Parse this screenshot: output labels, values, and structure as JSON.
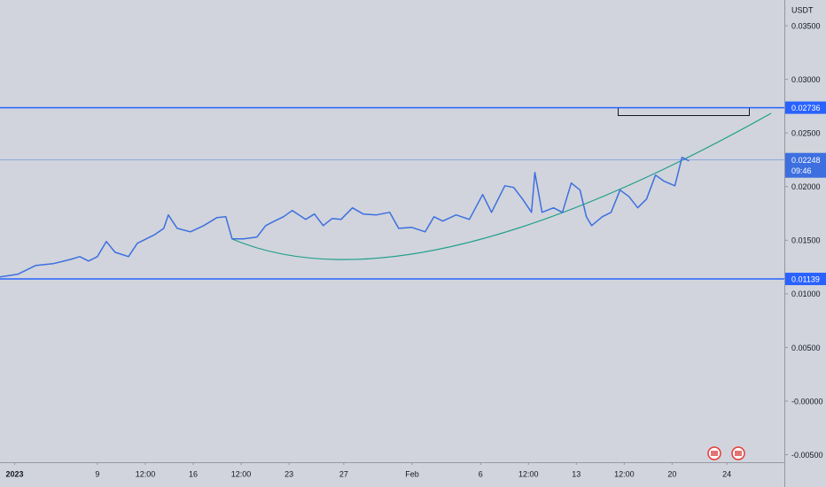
{
  "chart_data": {
    "type": "line",
    "currency": "USDT",
    "x": [
      1.88,
      3.17,
      4.47,
      5.76,
      7.06,
      7.71,
      8.35,
      9.0,
      9.65,
      10.29,
      11.27,
      11.91,
      12.56,
      13.21,
      13.85,
      14.18,
      14.83,
      15.8,
      16.77,
      17.74,
      18.38,
      18.84,
      19.68,
      20.65,
      21.3,
      21.94,
      22.59,
      23.24,
      24.21,
      24.86,
      25.5,
      26.15,
      26.8,
      27.64,
      28.42,
      29.39,
      30.36,
      31.01,
      31.98,
      32.95,
      33.6,
      34.24,
      35.21,
      36.18,
      37.15,
      37.8,
      38.77,
      39.42,
      40.07,
      40.72,
      40.97,
      41.49,
      42.33,
      42.98,
      43.63,
      44.27,
      44.73,
      45.12,
      45.89,
      46.54,
      47.19,
      47.83,
      48.48,
      49.13,
      49.78,
      50.42,
      51.2,
      51.72,
      52.24
    ],
    "values": [
      0.01157,
      0.01182,
      0.01264,
      0.01281,
      0.01322,
      0.01347,
      0.01306,
      0.01347,
      0.01488,
      0.01388,
      0.01347,
      0.01471,
      0.01512,
      0.01554,
      0.01611,
      0.01736,
      0.01611,
      0.01578,
      0.01636,
      0.01711,
      0.01719,
      0.01512,
      0.01512,
      0.01529,
      0.01636,
      0.01678,
      0.01719,
      0.01777,
      0.01694,
      0.01744,
      0.01636,
      0.01702,
      0.01694,
      0.01802,
      0.01744,
      0.01736,
      0.0176,
      0.01611,
      0.0162,
      0.01578,
      0.01719,
      0.01678,
      0.01736,
      0.01694,
      0.01926,
      0.0176,
      0.02008,
      0.01992,
      0.01884,
      0.0176,
      0.02132,
      0.0176,
      0.01802,
      0.0176,
      0.02033,
      0.01967,
      0.01719,
      0.01636,
      0.01719,
      0.0176,
      0.01967,
      0.01909,
      0.01802,
      0.01884,
      0.02107,
      0.0205,
      0.02008,
      0.02273,
      0.0224
    ],
    "color": "#3d6fe0",
    "levels": [
      0.02736,
      0.01139
    ],
    "level_color": "#2962ff",
    "last_price": 0.02248,
    "countdown": "09:46",
    "xlim": [
      1.88,
      59.2
    ],
    "ylim": [
      -0.0057,
      0.0374
    ],
    "xticks": [
      {
        "value": 2.95,
        "label": "2023"
      },
      {
        "value": 9,
        "label": "9"
      },
      {
        "value": 12.5,
        "label": "12:00"
      },
      {
        "value": 16,
        "label": "16"
      },
      {
        "value": 19.5,
        "label": "12:00"
      },
      {
        "value": 23,
        "label": "23"
      },
      {
        "value": 27,
        "label": "27"
      },
      {
        "value": 32,
        "label": "Feb"
      },
      {
        "value": 37,
        "label": "6"
      },
      {
        "value": 40.5,
        "label": "12:00"
      },
      {
        "value": 44,
        "label": "13"
      },
      {
        "value": 47.5,
        "label": "12:00"
      },
      {
        "value": 51,
        "label": "20"
      },
      {
        "value": 55,
        "label": "24"
      }
    ],
    "yticks": [
      {
        "value": 0.035,
        "label": "0.03500"
      },
      {
        "value": 0.03,
        "label": "0.03000"
      },
      {
        "value": 0.025,
        "label": "0.02500"
      },
      {
        "value": 0.02,
        "label": "0.02000"
      },
      {
        "value": 0.015,
        "label": "0.01500"
      },
      {
        "value": 0.01,
        "label": "0.01000"
      },
      {
        "value": 0.005,
        "label": "0.00500"
      },
      {
        "value": 0,
        "label": "-0.00000"
      },
      {
        "value": -0.005,
        "label": "-0.00500"
      }
    ]
  }
}
